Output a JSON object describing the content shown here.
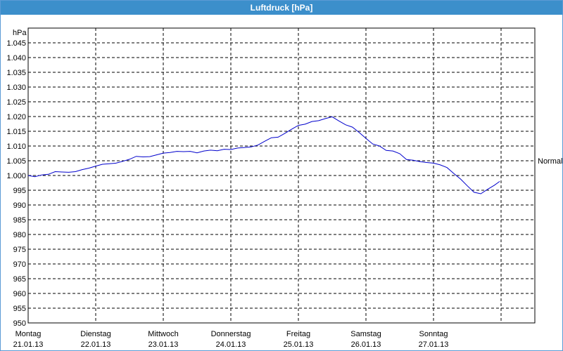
{
  "window": {
    "title": "Luftdruck [hPa]"
  },
  "chart_data": {
    "type": "line",
    "title": "Luftdruck [hPa]",
    "ylabel": "hPa",
    "ylim": [
      950,
      1050
    ],
    "yticks": [
      950,
      955,
      960,
      965,
      970,
      975,
      980,
      985,
      990,
      995,
      1000,
      1005,
      1010,
      1015,
      1020,
      1025,
      1030,
      1035,
      1040,
      1045
    ],
    "ytick_labels": [
      "950",
      "955",
      "960",
      "965",
      "970",
      "975",
      "980",
      "985",
      "990",
      "995",
      "1.000",
      "1.005",
      "1.010",
      "1.015",
      "1.020",
      "1.025",
      "1.030",
      "1.035",
      "1.040",
      "1.045"
    ],
    "xlim": [
      0,
      7.5
    ],
    "x_categories": [
      {
        "day": "Montag",
        "date": "21.01.13",
        "x": 0
      },
      {
        "day": "Dienstag",
        "date": "22.01.13",
        "x": 1
      },
      {
        "day": "Mittwoch",
        "date": "23.01.13",
        "x": 2
      },
      {
        "day": "Donnerstag",
        "date": "24.01.13",
        "x": 3
      },
      {
        "day": "Freitag",
        "date": "25.01.13",
        "x": 4
      },
      {
        "day": "Samstag",
        "date": "26.01.13",
        "x": 5
      },
      {
        "day": "Sonntag",
        "date": "27.01.13",
        "x": 6
      }
    ],
    "grid": true,
    "reference_line": {
      "label": "Normal",
      "value": 1005
    },
    "series": [
      {
        "color": "#0000cc",
        "points": [
          [
            0,
            1000
          ],
          [
            0.1,
            999.6
          ],
          [
            0.2,
            1000.2
          ],
          [
            0.3,
            1000.4
          ],
          [
            0.4,
            1001.3
          ],
          [
            0.5,
            1001.2
          ],
          [
            0.6,
            1001.1
          ],
          [
            0.7,
            1001.3
          ],
          [
            0.8,
            1002
          ],
          [
            0.9,
            1002.5
          ],
          [
            1,
            1003.2
          ],
          [
            1.1,
            1003.8
          ],
          [
            1.2,
            1004
          ],
          [
            1.3,
            1004.2
          ],
          [
            1.4,
            1004.8
          ],
          [
            1.5,
            1005.5
          ],
          [
            1.6,
            1006.5
          ],
          [
            1.7,
            1006.3
          ],
          [
            1.8,
            1006.4
          ],
          [
            1.9,
            1007
          ],
          [
            2,
            1007.6
          ],
          [
            2.1,
            1007.8
          ],
          [
            2.2,
            1008.2
          ],
          [
            2.3,
            1008.1
          ],
          [
            2.4,
            1008.2
          ],
          [
            2.5,
            1007.7
          ],
          [
            2.6,
            1008.3
          ],
          [
            2.7,
            1008.6
          ],
          [
            2.8,
            1008.4
          ],
          [
            2.9,
            1008.9
          ],
          [
            3,
            1008.8
          ],
          [
            3.1,
            1009.3
          ],
          [
            3.2,
            1009.5
          ],
          [
            3.3,
            1009.7
          ],
          [
            3.4,
            1010.3
          ],
          [
            3.5,
            1011.6
          ],
          [
            3.6,
            1012.8
          ],
          [
            3.7,
            1013
          ],
          [
            3.8,
            1014.3
          ],
          [
            3.9,
            1015.7
          ],
          [
            4,
            1017
          ],
          [
            4.1,
            1017.4
          ],
          [
            4.2,
            1018.3
          ],
          [
            4.3,
            1018.6
          ],
          [
            4.4,
            1019.3
          ],
          [
            4.5,
            1019.9
          ],
          [
            4.6,
            1018.5
          ],
          [
            4.7,
            1017.2
          ],
          [
            4.8,
            1016.4
          ],
          [
            4.9,
            1014.6
          ],
          [
            5,
            1012.6
          ],
          [
            5.1,
            1010.7
          ],
          [
            5.2,
            1010
          ],
          [
            5.3,
            1008.5
          ],
          [
            5.4,
            1008.3
          ],
          [
            5.5,
            1007.4
          ],
          [
            5.6,
            1005.4
          ],
          [
            5.7,
            1005.2
          ],
          [
            5.8,
            1004.7
          ],
          [
            5.9,
            1004.4
          ],
          [
            6,
            1004.2
          ],
          [
            6.1,
            1003.6
          ],
          [
            6.2,
            1002.7
          ],
          [
            6.3,
            1000.7
          ],
          [
            6.4,
            998.8
          ],
          [
            6.5,
            996.5
          ],
          [
            6.6,
            994.3
          ],
          [
            6.7,
            993.8
          ],
          [
            6.8,
            995.3
          ],
          [
            6.9,
            996.7
          ],
          [
            6.98,
            998
          ]
        ]
      }
    ]
  }
}
